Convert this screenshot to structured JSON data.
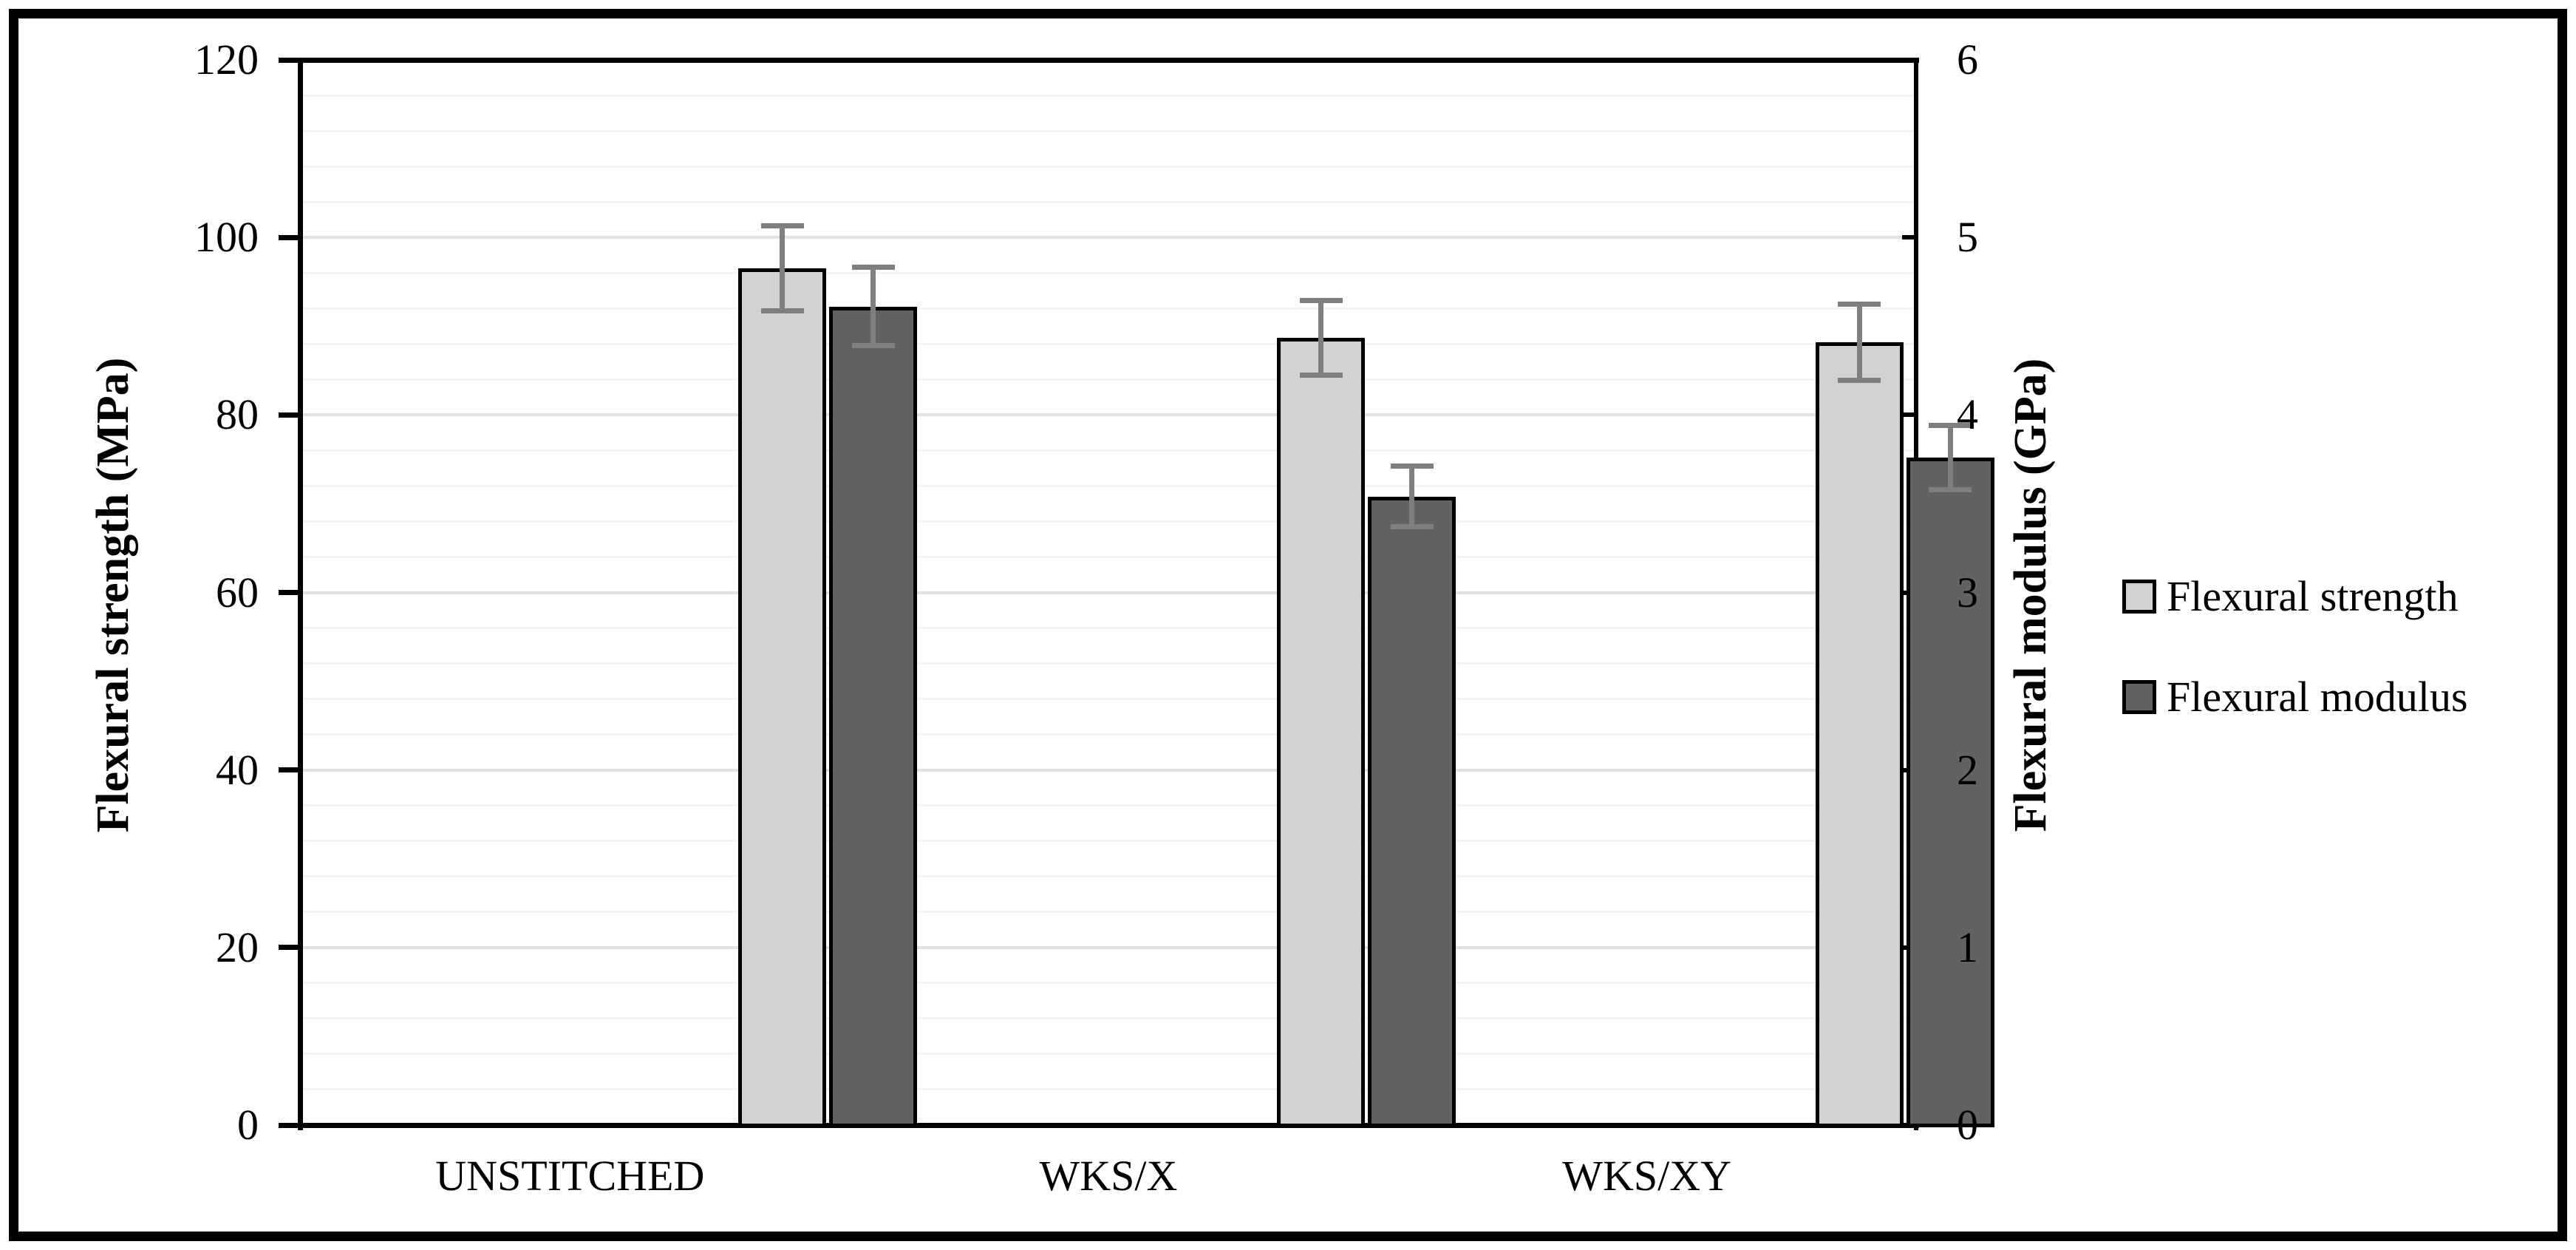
{
  "figure": {
    "background": "#ffffff",
    "border_color": "#000000"
  },
  "chart_data": {
    "type": "bar",
    "title": "",
    "categories": [
      "UNSTITCHED",
      "WKS/X",
      "WKS/XY"
    ],
    "series": [
      {
        "name": "Flexural strength",
        "axis": "left",
        "unit": "MPa",
        "color": "#d2d2d2",
        "values": [
          96.5,
          88.7,
          88.2
        ],
        "errors": [
          4.8,
          4.2,
          4.3
        ]
      },
      {
        "name": "Flexural modulus",
        "axis": "right",
        "unit": "GPa",
        "color": "#626262",
        "values": [
          4.61,
          3.54,
          3.76
        ],
        "errors": [
          0.22,
          0.17,
          0.18
        ]
      }
    ],
    "left_axis": {
      "label": "Flexural strength (MPa)",
      "min": 0,
      "max": 120,
      "major": 20,
      "minor": 4,
      "ticks": [
        0,
        20,
        40,
        60,
        80,
        100,
        120
      ]
    },
    "right_axis": {
      "label": "Flexural modulus (GPa)",
      "min": 0,
      "max": 6,
      "major": 1,
      "minor": 0.2,
      "ticks": [
        0,
        1,
        2,
        3,
        4,
        5,
        6
      ]
    },
    "legend": {
      "position": "right"
    },
    "style": {
      "error_bar_color": "#7f7f7f",
      "bar_border_color": "#000000",
      "minor_grid_color": "#f4f4f4",
      "major_grid_color": "#e2e2e2",
      "axis_color": "#000000"
    },
    "grid": true
  }
}
